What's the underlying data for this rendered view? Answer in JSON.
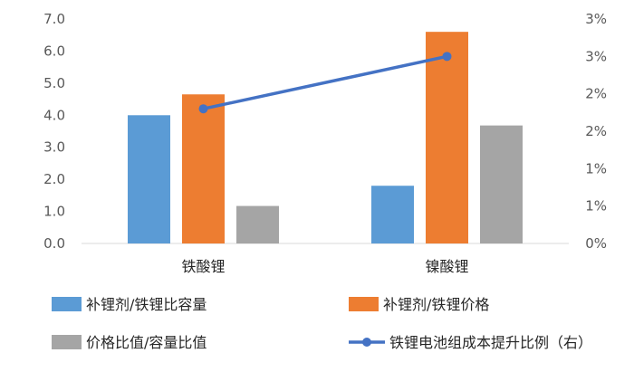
{
  "chart_data": {
    "type": "bar",
    "categories": [
      "铁酸锂",
      "镍酸锂"
    ],
    "series": [
      {
        "name": "补锂剂/铁锂比容量",
        "type": "bar",
        "axis": "left",
        "color": "#5B9BD5",
        "values": [
          4.0,
          1.8
        ]
      },
      {
        "name": "补锂剂/铁锂价格",
        "type": "bar",
        "axis": "left",
        "color": "#ED7D31",
        "values": [
          4.65,
          6.6
        ]
      },
      {
        "name": "价格比值/容量比值",
        "type": "bar",
        "axis": "left",
        "color": "#A5A5A5",
        "values": [
          1.17,
          3.68
        ]
      },
      {
        "name": "铁锂电池组成本提升比例（右）",
        "type": "line",
        "axis": "right",
        "color": "#4472C4",
        "values": [
          1.8,
          2.5
        ]
      }
    ],
    "left_axis": {
      "min": 0,
      "max": 7,
      "step": 1,
      "tick_labels": [
        "0.0",
        "1.0",
        "2.0",
        "3.0",
        "4.0",
        "5.0",
        "6.0",
        "7.0"
      ]
    },
    "right_axis": {
      "min": 0,
      "max": 3,
      "step": 0.5,
      "tick_labels": [
        "0%",
        "1%",
        "1%",
        "2%",
        "2%",
        "3%",
        "3%"
      ]
    },
    "grid": false,
    "legend_position": "bottom"
  }
}
